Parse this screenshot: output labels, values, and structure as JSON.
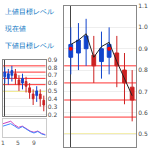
{
  "chart_data": [
    {
      "type": "text",
      "annotations": [
        {
          "text": "上値目標レベル",
          "color": "#0070c0"
        },
        {
          "text": "現在値",
          "color": "#0070c0"
        },
        {
          "text": "下値目標レベル",
          "color": "#0070c0"
        }
      ]
    },
    {
      "type": "candlestick",
      "open": [
        0.68,
        0.66,
        0.7,
        0.72,
        0.64,
        0.6,
        0.62,
        0.54,
        0.46,
        0.44,
        0.46,
        0.38
      ],
      "close": [
        0.74,
        0.72,
        0.76,
        0.66,
        0.58,
        0.66,
        0.56,
        0.48,
        0.4,
        0.5,
        0.4,
        0.32
      ],
      "high": [
        0.8,
        0.78,
        0.82,
        0.78,
        0.7,
        0.72,
        0.68,
        0.6,
        0.52,
        0.56,
        0.52,
        0.44
      ],
      "low": [
        0.6,
        0.58,
        0.62,
        0.58,
        0.5,
        0.52,
        0.48,
        0.4,
        0.32,
        0.36,
        0.3,
        0.24
      ],
      "colors": [
        "#1144cc",
        "#1144cc",
        "#1144cc",
        "#cc2222",
        "#cc2222",
        "#1144cc",
        "#cc2222",
        "#cc2222",
        "#cc2222",
        "#1144cc",
        "#cc2222",
        "#cc2222"
      ],
      "hlines": [
        {
          "value": 0.82,
          "color": "#ff3333"
        },
        {
          "value": 0.74,
          "color": "#ff3333"
        },
        {
          "value": 0.66,
          "color": "#ff3333"
        },
        {
          "value": 0.58,
          "color": "#ff3333"
        },
        {
          "value": 0.5,
          "color": "#ddcc00"
        }
      ],
      "ylim": [
        0.18,
        0.9
      ],
      "yticks": [
        0.2,
        0.3,
        0.4,
        0.5,
        0.6,
        0.7,
        0.8,
        0.9
      ],
      "grid": true,
      "tick_labels": "y"
    },
    {
      "type": "line",
      "series": [
        {
          "color": "#cc44bb",
          "values": [
            0.5,
            0.55,
            0.6,
            0.45,
            0.35,
            0.4,
            0.3,
            0.2,
            0.15,
            0.2,
            0.1,
            0.05
          ]
        },
        {
          "color": "#4488ff",
          "values": [
            0.4,
            0.45,
            0.5,
            0.4,
            0.3,
            0.38,
            0.28,
            0.18,
            0.12,
            0.18,
            0.08,
            0.03
          ]
        }
      ],
      "xlim": [
        0,
        11
      ],
      "ylim": [
        -0.05,
        0.7
      ],
      "annotations": [
        {
          "x": 0,
          "text": "1"
        },
        {
          "x": 4,
          "text": "5"
        },
        {
          "x": 8,
          "text": "9"
        }
      ],
      "tick_labels": false
    },
    {
      "type": "candlestick",
      "open": [
        0.86,
        0.88,
        0.9,
        0.87,
        0.84,
        0.86,
        0.88,
        0.8,
        0.72
      ],
      "close": [
        0.92,
        0.94,
        0.96,
        0.82,
        0.9,
        0.92,
        0.82,
        0.74,
        0.66
      ],
      "high": [
        1.0,
        1.02,
        1.04,
        0.96,
        0.98,
        1.0,
        0.96,
        0.88,
        0.8
      ],
      "low": [
        0.78,
        0.8,
        0.82,
        0.74,
        0.76,
        0.78,
        0.72,
        0.64,
        0.56
      ],
      "colors": [
        "#1144cc",
        "#1144cc",
        "#1144cc",
        "#cc2222",
        "#1144cc",
        "#1144cc",
        "#cc2222",
        "#cc2222",
        "#cc2222"
      ],
      "series": [
        {
          "type": "line",
          "color": "#222222",
          "values": [
            0.92,
            0.94,
            0.97,
            0.86,
            0.91,
            0.93,
            0.84,
            0.76,
            0.68
          ]
        },
        {
          "type": "scatter",
          "color": "#ff0000",
          "x": [
            0,
            5
          ],
          "values": [
            0.9,
            0.9
          ]
        }
      ],
      "hlines": [
        {
          "value": 0.82,
          "color": "#ff3333"
        },
        {
          "value": 0.74,
          "color": "#ff3333"
        },
        {
          "value": 0.66,
          "color": "#ff3333"
        },
        {
          "value": 0.58,
          "color": "#ff3333"
        },
        {
          "value": 0.5,
          "color": "#ddcc00"
        }
      ],
      "ylim": [
        0.44,
        1.1
      ],
      "yticks": [
        0.5,
        0.6,
        0.7,
        0.8,
        0.9,
        {
          "value": 1.0,
          "label": "1.0"
        },
        1.1
      ],
      "grid": true,
      "tick_labels": "y"
    }
  ]
}
